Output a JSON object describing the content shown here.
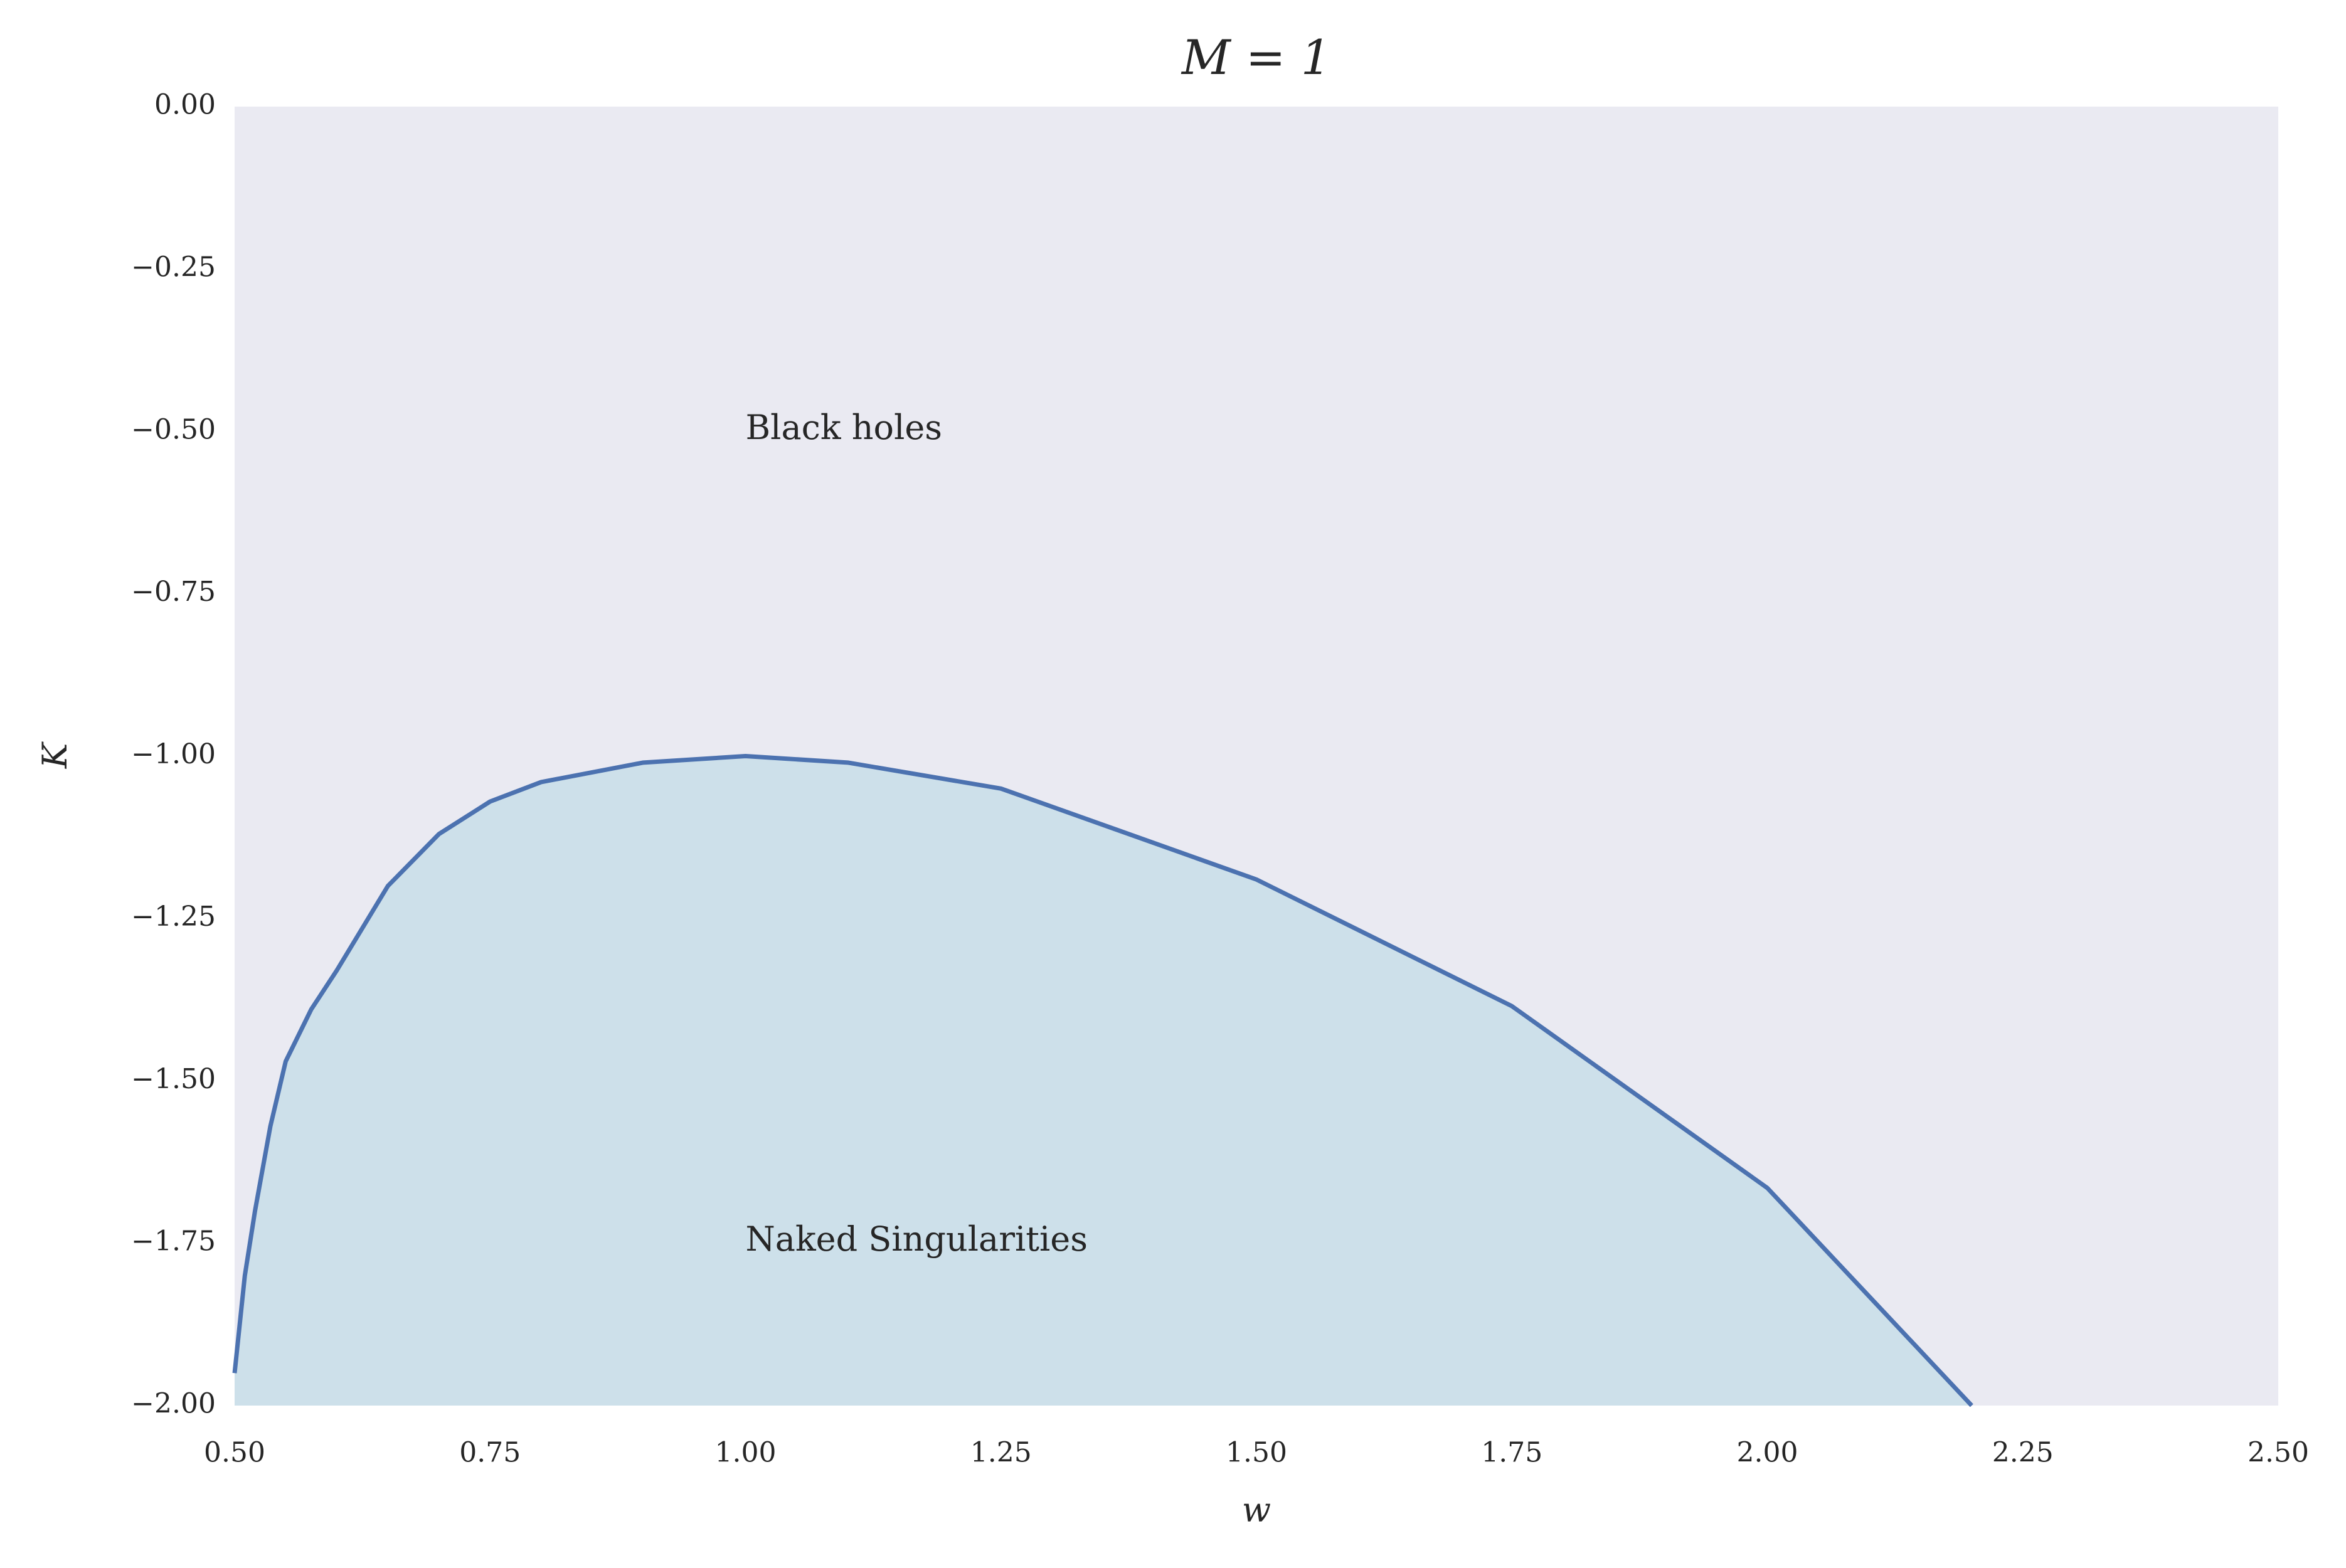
{
  "chart_data": {
    "type": "area",
    "title": "M = 1",
    "xlabel": "w",
    "ylabel": "K",
    "x": [
      0.5,
      0.51,
      0.52,
      0.535,
      0.55,
      0.575,
      0.6,
      0.65,
      0.7,
      0.75,
      0.8,
      0.9,
      1.0,
      1.1,
      1.25,
      1.5,
      1.75,
      2.0,
      2.2
    ],
    "series": [
      {
        "values": [
          -1.95,
          -1.8,
          -1.7,
          -1.57,
          -1.47,
          -1.39,
          -1.33,
          -1.2,
          -1.12,
          -1.07,
          -1.04,
          -1.01,
          -1.0,
          -1.01,
          -1.05,
          -1.19,
          -1.385,
          -1.665,
          -2.0
        ],
        "color": "#4c72b0",
        "fill": "#cde0ea"
      }
    ],
    "annotations": [
      {
        "text": "Black holes",
        "x": 1.0,
        "y": -0.5
      },
      {
        "text": "Naked Singularities",
        "x": 1.0,
        "y": -1.75
      }
    ],
    "background": "#eaeaf2",
    "xlim": [
      0.5,
      2.5
    ],
    "ylim": [
      -2,
      0
    ],
    "xticks": [
      {
        "value": 0.5,
        "label": "0.50"
      },
      {
        "value": 0.75,
        "label": "0.75"
      },
      {
        "value": 1,
        "label": "1.00"
      },
      {
        "value": 1.25,
        "label": "1.25"
      },
      {
        "value": 1.5,
        "label": "1.50"
      },
      {
        "value": 1.75,
        "label": "1.75"
      },
      {
        "value": 2,
        "label": "2.00"
      },
      {
        "value": 2.25,
        "label": "2.25"
      },
      {
        "value": 2.5,
        "label": "2.50"
      }
    ],
    "yticks": [
      {
        "value": 0,
        "label": "0.00"
      },
      {
        "value": -0.25,
        "label": "−0.25"
      },
      {
        "value": -0.5,
        "label": "−0.50"
      },
      {
        "value": -0.75,
        "label": "−0.75"
      },
      {
        "value": -1,
        "label": "−1.00"
      },
      {
        "value": -1.25,
        "label": "−1.25"
      },
      {
        "value": -1.5,
        "label": "−1.50"
      },
      {
        "value": -1.75,
        "label": "−1.75"
      },
      {
        "value": -2,
        "label": "−2.00"
      }
    ],
    "grid": false
  }
}
